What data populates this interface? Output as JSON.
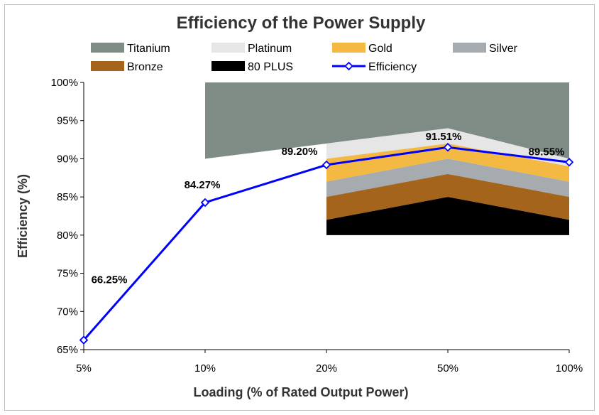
{
  "chart_data": {
    "type": "line",
    "title": "Efficiency of the Power Supply",
    "xlabel": "Loading (% of Rated Output Power)",
    "ylabel": "Efficiency (%)",
    "categories": [
      "5%",
      "10%",
      "20%",
      "50%",
      "100%"
    ],
    "ylim": [
      65,
      100
    ],
    "ytick_step": 5,
    "ytick_labels": [
      "65%",
      "70%",
      "75%",
      "80%",
      "85%",
      "90%",
      "95%",
      "100%"
    ],
    "series": [
      {
        "name": "Efficiency",
        "values": [
          66.25,
          84.27,
          89.2,
          91.51,
          89.55
        ],
        "data_labels": [
          "66.25%",
          "84.27%",
          "89.20%",
          "91.51%",
          "89.55%"
        ],
        "color": "#0000ff"
      }
    ],
    "bands": [
      {
        "name": "Titanium",
        "color": "#7f8c86",
        "category_range": [
          1,
          4
        ],
        "top": [
          100,
          100,
          100,
          100
        ],
        "bottom": [
          90,
          92,
          94,
          90
        ]
      },
      {
        "name": "Platinum",
        "color": "#e6e6e6",
        "category_range": [
          2,
          4
        ],
        "top": [
          92,
          94,
          90
        ],
        "bottom": [
          90,
          92,
          89
        ]
      },
      {
        "name": "Gold",
        "color": "#f4b942",
        "category_range": [
          2,
          4
        ],
        "top": [
          90,
          92,
          89
        ],
        "bottom": [
          87,
          90,
          87
        ]
      },
      {
        "name": "Silver",
        "color": "#a6abaf",
        "category_range": [
          2,
          4
        ],
        "top": [
          87,
          90,
          87
        ],
        "bottom": [
          85,
          88,
          85
        ]
      },
      {
        "name": "Bronze",
        "color": "#a4641b",
        "category_range": [
          2,
          4
        ],
        "top": [
          85,
          88,
          85
        ],
        "bottom": [
          82,
          85,
          82
        ]
      },
      {
        "name": "80 PLUS",
        "color": "#000000",
        "category_range": [
          2,
          4
        ],
        "top": [
          82,
          85,
          82
        ],
        "bottom": [
          80,
          80,
          80
        ]
      }
    ],
    "legend": {
      "placement": "top",
      "items": [
        "Titanium",
        "Platinum",
        "Gold",
        "Silver",
        "Bronze",
        "80 PLUS",
        "Efficiency"
      ]
    },
    "grid": false
  }
}
